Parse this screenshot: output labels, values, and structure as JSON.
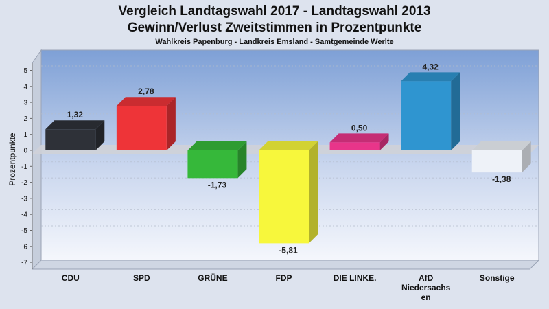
{
  "chart_data": {
    "type": "bar",
    "title": "Vergleich Landtagswahl 2017 - Landtagswahl 2013",
    "title_line2": "Gewinn/Verlust Zweitstimmen in Prozentpunkte",
    "subtitle": "Wahlkreis Papenburg - Landkreis Emsland - Samtgemeinde Werlte",
    "ylabel": "Prozentpunkte",
    "xlabel": "",
    "ylim": [
      -7,
      5.5
    ],
    "yticks": [
      5,
      4,
      3,
      2,
      1,
      0,
      -1,
      -2,
      -3,
      -4,
      -5,
      -6,
      -7
    ],
    "ytick_labels": [
      "5",
      "4",
      "3",
      "2",
      "1",
      "0",
      "-1",
      "-2",
      "-3",
      "-4",
      "-5",
      "-6",
      "-7"
    ],
    "grid": true,
    "categories": [
      [
        "CDU"
      ],
      [
        "SPD"
      ],
      [
        "GRÜNE"
      ],
      [
        "FDP"
      ],
      [
        "DIE LINKE."
      ],
      [
        "AfD",
        "Niedersachs",
        "en"
      ],
      [
        "Sonstige"
      ]
    ],
    "values": [
      1.32,
      2.78,
      -1.73,
      -5.81,
      0.5,
      4.32,
      -1.38
    ],
    "value_labels": [
      "1,32",
      "2,78",
      "-1,73",
      "-5,81",
      "0,50",
      "4,32",
      "-1,38"
    ],
    "colors": [
      "#2e3138",
      "#ee3438",
      "#36b83a",
      "#f7f73c",
      "#e8358a",
      "#2f95d0",
      "#eef2f8"
    ]
  }
}
